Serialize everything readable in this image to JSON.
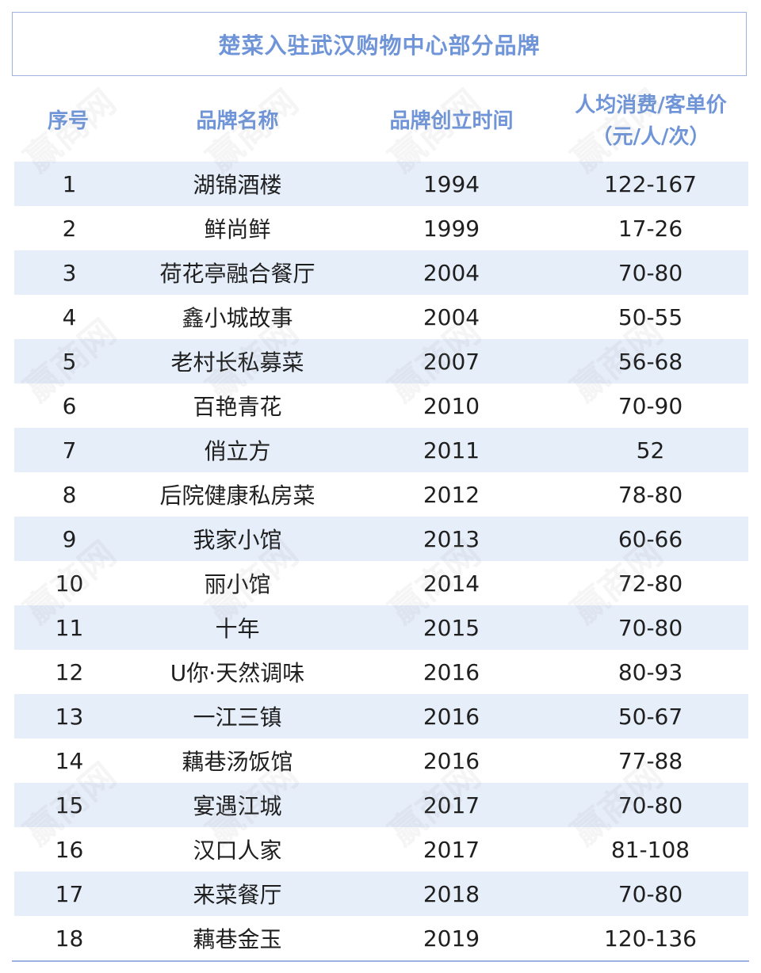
{
  "title": "楚菜入驻武汉购物中心部分品牌",
  "headers": {
    "index": "序号",
    "name": "品牌名称",
    "founded": "品牌创立时间",
    "price_line1": "人均消费/客单价",
    "price_line2": "（元/人/次）"
  },
  "rows": [
    {
      "index": "1",
      "name": "湖锦酒楼",
      "founded": "1994",
      "price": "122-167"
    },
    {
      "index": "2",
      "name": "鲜尚鲜",
      "founded": "1999",
      "price": "17-26"
    },
    {
      "index": "3",
      "name": "荷花亭融合餐厅",
      "founded": "2004",
      "price": "70-80"
    },
    {
      "index": "4",
      "name": "鑫小城故事",
      "founded": "2004",
      "price": "50-55"
    },
    {
      "index": "5",
      "name": "老村长私募菜",
      "founded": "2007",
      "price": "56-68"
    },
    {
      "index": "6",
      "name": "百艳青花",
      "founded": "2010",
      "price": "70-90"
    },
    {
      "index": "7",
      "name": "俏立方",
      "founded": "2011",
      "price": "52"
    },
    {
      "index": "8",
      "name": "后院健康私房菜",
      "founded": "2012",
      "price": "78-80"
    },
    {
      "index": "9",
      "name": "我家小馆",
      "founded": "2013",
      "price": "60-66"
    },
    {
      "index": "10",
      "name": "丽小馆",
      "founded": "2014",
      "price": "72-80"
    },
    {
      "index": "11",
      "name": "十年",
      "founded": "2015",
      "price": "70-80"
    },
    {
      "index": "12",
      "name": "U你·天然调味",
      "founded": "2016",
      "price": "80-93"
    },
    {
      "index": "13",
      "name": "一江三镇",
      "founded": "2016",
      "price": "50-67"
    },
    {
      "index": "14",
      "name": "藕巷汤饭馆",
      "founded": "2016",
      "price": "77-88"
    },
    {
      "index": "15",
      "name": "宴遇江城",
      "founded": "2017",
      "price": "70-80"
    },
    {
      "index": "16",
      "name": "汉口人家",
      "founded": "2017",
      "price": "81-108"
    },
    {
      "index": "17",
      "name": "来菜餐厅",
      "founded": "2018",
      "price": "70-80"
    },
    {
      "index": "18",
      "name": "藕巷金玉",
      "founded": "2019",
      "price": "120-136"
    }
  ],
  "watermark_text": "赢商网",
  "colors": {
    "accent": "#6f95d8",
    "row_shade": "#e6eefa",
    "border": "#9bb3de"
  }
}
